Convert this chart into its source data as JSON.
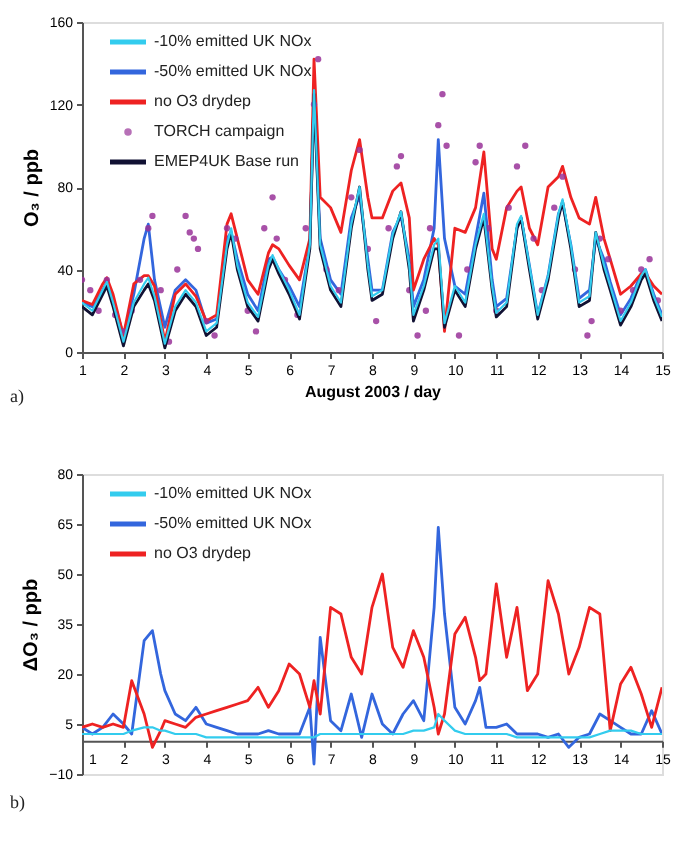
{
  "chart_data": [
    {
      "type": "line",
      "xlabel": "August 2003 / day",
      "ylabel": "O₃ / ppb",
      "annotations": [
        "a)"
      ],
      "legend": "top left",
      "grid": false,
      "xlim": [
        1,
        15
      ],
      "xticks": [
        1,
        2,
        3,
        4,
        5,
        6,
        7,
        8,
        9,
        10,
        11,
        12,
        13,
        14,
        15
      ],
      "ylim": [
        0,
        160
      ],
      "yticks": [
        0,
        40,
        80,
        120,
        160
      ],
      "x": [
        1,
        1.25,
        1.5,
        1.6,
        1.75,
        2,
        2.25,
        2.5,
        2.6,
        2.75,
        3,
        3.25,
        3.5,
        3.75,
        4,
        4.25,
        4.5,
        4.6,
        4.75,
        5,
        5.25,
        5.5,
        5.6,
        5.75,
        6,
        6.25,
        6.5,
        6.6,
        6.75,
        7,
        7.25,
        7.5,
        7.7,
        7.9,
        8,
        8.25,
        8.5,
        8.7,
        8.9,
        9,
        9.25,
        9.5,
        9.6,
        9.75,
        10,
        10.25,
        10.5,
        10.7,
        10.9,
        11,
        11.25,
        11.5,
        11.6,
        11.8,
        12,
        12.25,
        12.5,
        12.6,
        12.8,
        13,
        13.25,
        13.4,
        13.6,
        13.75,
        14,
        14.25,
        14.5,
        14.6,
        14.8,
        15
      ],
      "series": [
        {
          "name": "-10% emitted UK NOx",
          "color": "#33ccee",
          "values": [
            24,
            20,
            30,
            34,
            24,
            5,
            24,
            33,
            36,
            27,
            4,
            22,
            30,
            24,
            10,
            14,
            52,
            60,
            42,
            24,
            17,
            42,
            47,
            40,
            30,
            18,
            52,
            127,
            52,
            32,
            24,
            62,
            80,
            42,
            27,
            30,
            57,
            68,
            42,
            18,
            32,
            52,
            55,
            14,
            32,
            24,
            52,
            67,
            32,
            19,
            24,
            62,
            66,
            42,
            18,
            37,
            67,
            74,
            52,
            24,
            27,
            58,
            42,
            32,
            15,
            24,
            37,
            40,
            27,
            17
          ]
        },
        {
          "name": "-50% emitted UK NOx",
          "color": "#3366dd",
          "values": [
            24,
            22,
            30,
            34,
            26,
            8,
            28,
            55,
            62,
            35,
            12,
            30,
            35,
            30,
            14,
            16,
            55,
            58,
            45,
            28,
            20,
            45,
            46,
            40,
            32,
            22,
            52,
            125,
            55,
            35,
            28,
            65,
            76,
            45,
            30,
            30,
            58,
            66,
            45,
            22,
            35,
            60,
            103,
            55,
            32,
            28,
            55,
            77,
            35,
            22,
            26,
            60,
            65,
            42,
            18,
            37,
            67,
            72,
            52,
            26,
            30,
            55,
            45,
            34,
            18,
            26,
            38,
            40,
            28,
            18
          ]
        },
        {
          "name": "no O3 drydep",
          "color": "#ee2222",
          "values": [
            25,
            23,
            33,
            36,
            28,
            8,
            33,
            37,
            37,
            32,
            5,
            28,
            33,
            27,
            15,
            18,
            62,
            67,
            55,
            35,
            28,
            48,
            52,
            50,
            42,
            35,
            55,
            142,
            75,
            70,
            58,
            88,
            103,
            75,
            65,
            65,
            78,
            82,
            65,
            30,
            45,
            55,
            52,
            10,
            60,
            58,
            70,
            97,
            50,
            45,
            70,
            78,
            80,
            60,
            52,
            80,
            85,
            90,
            75,
            65,
            62,
            75,
            55,
            45,
            28,
            32,
            38,
            38,
            32,
            28
          ]
        },
        {
          "name": "TORCH campaign",
          "type": "scatter",
          "marker": "circle",
          "color": "#993399",
          "x": [
            1.0,
            1.2,
            1.4,
            1.6,
            1.8,
            2.0,
            2.2,
            2.4,
            2.6,
            2.7,
            2.9,
            3.1,
            3.3,
            3.5,
            3.6,
            3.7,
            3.8,
            4.0,
            4.2,
            4.5,
            4.7,
            5.0,
            5.2,
            5.4,
            5.6,
            5.7,
            5.9,
            6.2,
            6.4,
            6.6,
            6.7,
            6.9,
            7.2,
            7.5,
            7.7,
            7.9,
            8.1,
            8.4,
            8.6,
            8.7,
            8.9,
            9.1,
            9.3,
            9.4,
            9.6,
            9.7,
            9.8,
            10.1,
            10.3,
            10.5,
            10.6,
            10.8,
            11.0,
            11.3,
            11.5,
            11.7,
            11.9,
            12.1,
            12.4,
            12.6,
            12.9,
            13.2,
            13.3,
            13.5,
            13.7,
            14.0,
            14.3,
            14.5,
            14.7,
            14.9
          ],
          "values": [
            35,
            30,
            20,
            35,
            18,
            10,
            20,
            35,
            60,
            66,
            30,
            5,
            40,
            66,
            58,
            55,
            50,
            15,
            8,
            60,
            55,
            20,
            10,
            60,
            75,
            55,
            35,
            18,
            60,
            120,
            142,
            40,
            30,
            75,
            98,
            50,
            15,
            60,
            90,
            95,
            30,
            8,
            20,
            60,
            110,
            125,
            100,
            8,
            40,
            92,
            100,
            60,
            20,
            70,
            90,
            100,
            55,
            30,
            70,
            85,
            40,
            8,
            15,
            55,
            45,
            20,
            30,
            40,
            45,
            25
          ]
        },
        {
          "name": "EMEP4UK Base run",
          "color": "#111133",
          "values": [
            22,
            18,
            28,
            32,
            22,
            3,
            22,
            30,
            33,
            25,
            2,
            20,
            28,
            22,
            8,
            12,
            50,
            58,
            40,
            22,
            15,
            40,
            45,
            38,
            28,
            16,
            50,
            125,
            50,
            30,
            22,
            60,
            80,
            40,
            25,
            28,
            55,
            68,
            40,
            15,
            30,
            50,
            50,
            12,
            30,
            22,
            50,
            65,
            30,
            17,
            22,
            60,
            65,
            40,
            16,
            35,
            65,
            73,
            50,
            22,
            25,
            58,
            40,
            30,
            13,
            22,
            35,
            38,
            25,
            15
          ]
        }
      ]
    },
    {
      "type": "line",
      "ylabel": "ΔO₃ / ppb",
      "annotations": [
        "b)"
      ],
      "legend": "top left",
      "grid": false,
      "xlim": [
        1,
        15
      ],
      "xticks": [
        1,
        2,
        3,
        4,
        5,
        6,
        7,
        8,
        9,
        10,
        11,
        12,
        13,
        14,
        15
      ],
      "ylim": [
        -10,
        80
      ],
      "yticks": [
        -10,
        5,
        20,
        35,
        50,
        65,
        80
      ],
      "x": [
        1,
        1.25,
        1.5,
        1.75,
        2,
        2.2,
        2.5,
        2.7,
        2.9,
        3,
        3.25,
        3.5,
        3.75,
        4,
        4.25,
        4.5,
        4.75,
        5,
        5.25,
        5.5,
        5.75,
        6,
        6.25,
        6.5,
        6.6,
        6.75,
        7,
        7.25,
        7.5,
        7.75,
        8,
        8.25,
        8.5,
        8.75,
        9,
        9.25,
        9.5,
        9.6,
        9.75,
        10,
        10.25,
        10.5,
        10.6,
        10.75,
        11,
        11.25,
        11.5,
        11.75,
        12,
        12.25,
        12.5,
        12.75,
        13,
        13.25,
        13.5,
        13.75,
        14,
        14.25,
        14.5,
        14.75,
        15
      ],
      "series": [
        {
          "name": "-10% emitted UK NOx",
          "color": "#33ccee",
          "values": [
            2,
            2,
            2,
            2,
            2,
            3,
            4,
            4,
            3,
            3,
            2,
            2,
            2,
            1,
            1,
            1,
            1,
            1,
            1,
            1,
            1,
            1,
            1,
            1,
            1,
            2,
            2,
            2,
            2,
            2,
            2,
            2,
            2,
            2,
            3,
            3,
            4,
            8,
            6,
            3,
            2,
            2,
            2,
            2,
            2,
            2,
            1,
            1,
            1,
            1,
            1,
            1,
            1,
            1,
            2,
            3,
            3,
            3,
            2,
            2,
            2
          ]
        },
        {
          "name": "-50% emitted UK NOx",
          "color": "#3366dd",
          "values": [
            4,
            2,
            4,
            8,
            5,
            2,
            30,
            33,
            20,
            15,
            8,
            6,
            10,
            5,
            4,
            3,
            2,
            2,
            2,
            3,
            2,
            2,
            2,
            10,
            -7,
            31,
            6,
            3,
            14,
            1,
            14,
            5,
            2,
            8,
            12,
            6,
            40,
            64,
            38,
            10,
            5,
            12,
            16,
            4,
            4,
            5,
            2,
            2,
            2,
            1,
            2,
            -2,
            1,
            2,
            8,
            6,
            4,
            2,
            2,
            9,
            2
          ]
        },
        {
          "name": "no O3 drydep",
          "color": "#ee2222",
          "values": [
            4,
            5,
            4,
            5,
            4,
            18,
            8,
            -2,
            3,
            6,
            5,
            4,
            7,
            8,
            9,
            10,
            11,
            12,
            16,
            10,
            15,
            23,
            20,
            10,
            18,
            8,
            40,
            38,
            25,
            20,
            40,
            50,
            28,
            22,
            33,
            25,
            10,
            2,
            8,
            32,
            37,
            25,
            18,
            20,
            47,
            25,
            40,
            15,
            20,
            48,
            38,
            20,
            28,
            40,
            38,
            3,
            17,
            22,
            14,
            4,
            16
          ]
        }
      ]
    }
  ]
}
